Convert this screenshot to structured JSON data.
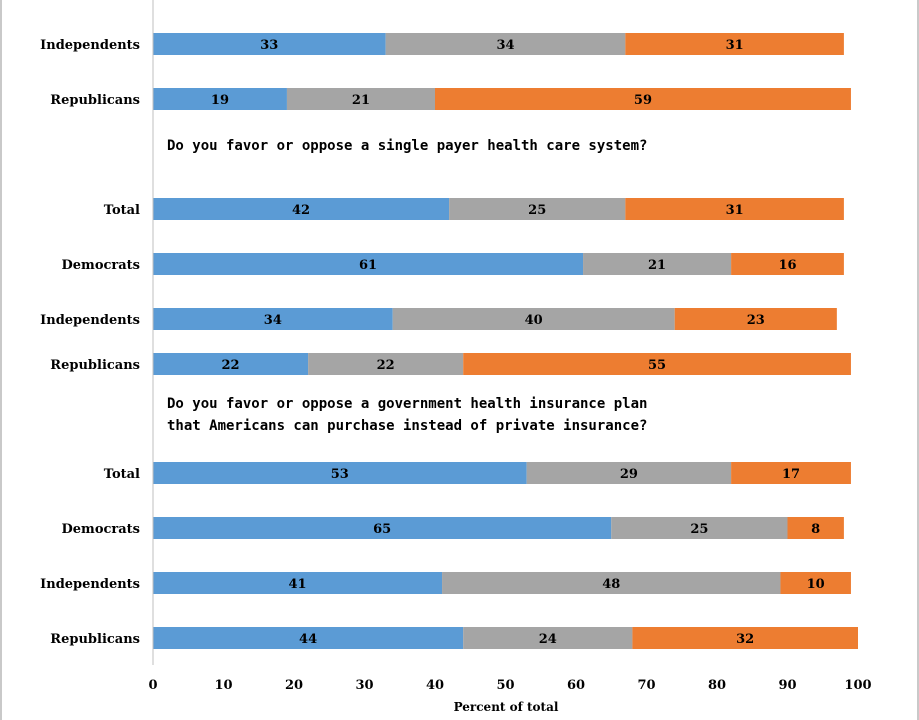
{
  "chart_data": {
    "type": "bar",
    "orientation": "horizontal",
    "stacked": true,
    "xlabel": "Percent of total",
    "xlim": [
      0,
      100
    ],
    "xticks": [
      0,
      10,
      20,
      30,
      40,
      50,
      60,
      70,
      80,
      90,
      100
    ],
    "colors": {
      "favor": "#5b9bd5",
      "neither": "#a5a5a5",
      "oppose": "#ed7d31"
    },
    "groups": [
      {
        "question": [],
        "rows": [
          {
            "label": "Independents",
            "values": [
              33,
              34,
              31
            ]
          },
          {
            "label": "Republicans",
            "values": [
              19,
              21,
              59
            ]
          }
        ]
      },
      {
        "question": [
          "Do you favor or oppose a single payer health care system?"
        ],
        "rows": [
          {
            "label": "Total",
            "values": [
              42,
              25,
              31
            ]
          },
          {
            "label": "Democrats",
            "values": [
              61,
              21,
              16
            ]
          },
          {
            "label": "Independents",
            "values": [
              34,
              40,
              23
            ]
          },
          {
            "label": "Republicans",
            "values": [
              22,
              22,
              55
            ]
          }
        ]
      },
      {
        "question": [
          "Do you favor or oppose a government health insurance plan",
          "that Americans can purchase instead of private insurance?"
        ],
        "rows": [
          {
            "label": "Total",
            "values": [
              53,
              29,
              17
            ]
          },
          {
            "label": "Democrats",
            "values": [
              65,
              25,
              8
            ]
          },
          {
            "label": "Independents",
            "values": [
              41,
              48,
              10
            ]
          },
          {
            "label": "Republicans",
            "values": [
              44,
              24,
              32
            ]
          }
        ]
      }
    ]
  }
}
